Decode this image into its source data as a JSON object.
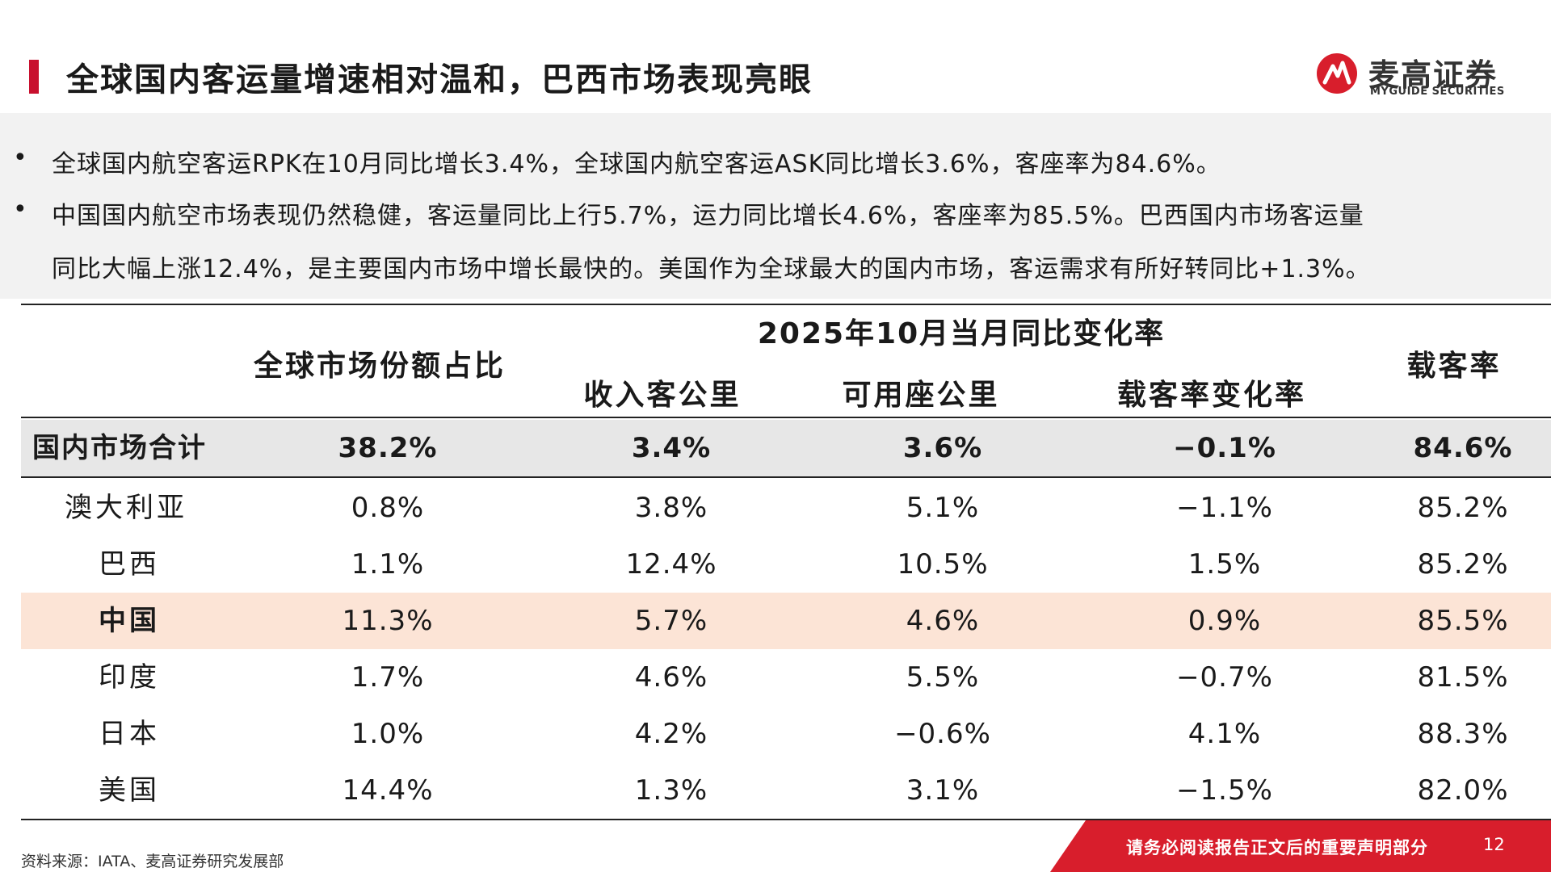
{
  "header": {
    "title": "全球国内客运量增速相对温和，巴西市场表现亮眼",
    "logo_cn": "麦高证券",
    "logo_en": "MYGUIDE SECURITIES"
  },
  "summary": {
    "bullet_symbol": "•",
    "bullets": [
      "全球国内航空客运RPK在10月同比增长3.4%，全球国内航空客运ASK同比增长3.6%，客座率为84.6%。",
      "中国国内航空市场表现仍然稳健，客运量同比上行5.7%，运力同比增长4.6%，客座率为85.5%。巴西国内市场客运量",
      "同比大幅上涨12.4%，是主要国内市场中增长最快的。美国作为全球最大的国内市场，客运需求有所好转同比+1.3%。"
    ]
  },
  "table": {
    "headers": {
      "share": "全球市场份额占比",
      "group": "2025年10月当月同比变化率",
      "rpk": "收入客公里",
      "ask": "可用座公里",
      "plf_change": "载客率变化率",
      "plf": "载客率"
    },
    "rows": [
      {
        "name": "国内市场合计",
        "share": "38.2%",
        "rpk": "3.4%",
        "ask": "3.6%",
        "plf_change": "−0.1%",
        "plf": "84.6%"
      },
      {
        "name": "澳大利亚",
        "share": "0.8%",
        "rpk": "3.8%",
        "ask": "5.1%",
        "plf_change": "−1.1%",
        "plf": "85.2%"
      },
      {
        "name": "巴西",
        "share": "1.1%",
        "rpk": "12.4%",
        "ask": "10.5%",
        "plf_change": "1.5%",
        "plf": "85.2%"
      },
      {
        "name": "中国",
        "share": "11.3%",
        "rpk": "5.7%",
        "ask": "4.6%",
        "plf_change": "0.9%",
        "plf": "85.5%"
      },
      {
        "name": "印度",
        "share": "1.7%",
        "rpk": "4.6%",
        "ask": "5.5%",
        "plf_change": "−0.7%",
        "plf": "81.5%"
      },
      {
        "name": "日本",
        "share": "1.0%",
        "rpk": "4.2%",
        "ask": "−0.6%",
        "plf_change": "4.1%",
        "plf": "88.3%"
      },
      {
        "name": "美国",
        "share": "14.4%",
        "rpk": "1.3%",
        "ask": "3.1%",
        "plf_change": "−1.5%",
        "plf": "82.0%"
      }
    ]
  },
  "footer": {
    "source": "资料来源：IATA、麦高证券研究发展部",
    "notice": "请务必阅读报告正文后的重要声明部分",
    "page": "12"
  },
  "colors": {
    "accent_red": "#c8102e",
    "total_row_bg": "#e7e7e7",
    "highlight_row_bg": "#fce4d6"
  }
}
